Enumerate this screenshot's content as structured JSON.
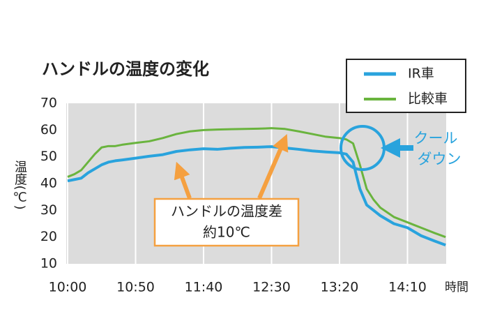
{
  "chart_data": {
    "type": "line",
    "title": "ハンドルの温度の変化",
    "y_label": "温度(℃)",
    "x_label": "時間",
    "x": [
      0,
      5,
      10,
      15,
      20,
      25,
      30,
      35,
      40,
      50,
      60,
      70,
      80,
      90,
      100,
      110,
      120,
      130,
      140,
      150,
      160,
      170,
      180,
      190,
      200,
      205,
      210,
      215,
      220,
      225,
      230,
      240,
      250,
      255,
      260,
      270,
      278
    ],
    "series": [
      {
        "name": "IR車",
        "color": "#29a3dd",
        "values": [
          41,
          41.5,
          42,
          44,
          45.5,
          47,
          48,
          48.5,
          48.8,
          49.5,
          50.2,
          50.8,
          52,
          52.6,
          53,
          52.8,
          53.2,
          53.5,
          53.6,
          53.8,
          53.3,
          52.8,
          52.2,
          51.8,
          51.5,
          51,
          48,
          38,
          32,
          30,
          28,
          25,
          23.5,
          22,
          20.5,
          18.5,
          17
        ]
      },
      {
        "name": "比較車",
        "color": "#6ab43e",
        "values": [
          42.5,
          43.5,
          45,
          48,
          51,
          53.5,
          54,
          54,
          54.5,
          55.2,
          55.8,
          57,
          58.5,
          59.5,
          60,
          60.2,
          60.3,
          60.4,
          60.5,
          60.7,
          60.4,
          59.5,
          58.5,
          57.5,
          57,
          56.5,
          55,
          47,
          38,
          34,
          31,
          27.5,
          25.5,
          24.5,
          23.5,
          21.5,
          20
        ]
      }
    ],
    "xlim": [
      0,
      280
    ],
    "ylim": [
      10,
      70
    ],
    "xticks": [
      {
        "value": 0,
        "label": "10:00"
      },
      {
        "value": 50,
        "label": "10:50"
      },
      {
        "value": 100,
        "label": "11:40"
      },
      {
        "value": 150,
        "label": "12:30"
      },
      {
        "value": 200,
        "label": "13:20"
      },
      {
        "value": 250,
        "label": "14:10"
      }
    ],
    "yticks": [
      10,
      20,
      30,
      40,
      50,
      60,
      70
    ],
    "grid": true,
    "legend": "top-right",
    "annotation": [
      "ハンドルの温度差",
      "約10℃"
    ],
    "callout": [
      "クール",
      "ダウン"
    ]
  }
}
